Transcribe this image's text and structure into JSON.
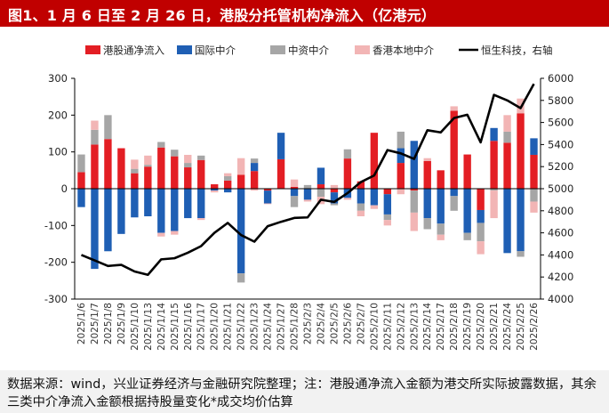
{
  "header": {
    "title": "图1、1 月 6 日至 2 月 26 日，港股分托管机构净流入（亿港元）"
  },
  "footnote": {
    "text": "数据来源：wind，兴业证券经济与金融研究院整理；注：港股通净流入金额为港交所实际披露数据，其余三类中介净流入金额根据持股量变化*成交均价估算"
  },
  "colors": {
    "southbound": "#e31e24",
    "intl_broker": "#1f5fb4",
    "chinese_broker": "#a6a6a6",
    "local_broker": "#f2b5b5",
    "hsi_line": "#000000",
    "title_bg": "#c00000"
  },
  "chart_data": {
    "type": "bar",
    "stacked": true,
    "categories": [
      "2025/1/6",
      "2025/1/7",
      "2025/1/8",
      "2025/1/9",
      "2025/1/10",
      "2025/1/13",
      "2025/1/14",
      "2025/1/15",
      "2025/1/16",
      "2025/1/17",
      "2025/1/20",
      "2025/1/21",
      "2025/1/22",
      "2025/1/23",
      "2025/1/24",
      "2025/1/27",
      "2025/1/28",
      "2025/2/3",
      "2025/2/4",
      "2025/2/5",
      "2025/2/6",
      "2025/2/7",
      "2025/2/10",
      "2025/2/11",
      "2025/2/12",
      "2025/2/13",
      "2025/2/14",
      "2025/2/17",
      "2025/2/18",
      "2025/2/19",
      "2025/2/20",
      "2025/2/21",
      "2025/2/24",
      "2025/2/25",
      "2025/2/26"
    ],
    "series": [
      {
        "name": "港股通净流入",
        "axis": "left",
        "values": [
          45,
          120,
          135,
          110,
          42,
          60,
          112,
          88,
          58,
          78,
          12,
          22,
          38,
          48,
          -5,
          80,
          5,
          0,
          12,
          -10,
          82,
          20,
          152,
          -15,
          70,
          -5,
          75,
          50,
          212,
          93,
          -58,
          130,
          125,
          205,
          92
        ]
      },
      {
        "name": "国际中介",
        "axis": "left",
        "values": [
          -50,
          -218,
          -170,
          -123,
          -78,
          -75,
          -120,
          -115,
          -80,
          -80,
          -5,
          -10,
          -230,
          22,
          -35,
          72,
          -20,
          -30,
          45,
          -30,
          -25,
          -40,
          -45,
          -55,
          40,
          130,
          -80,
          -95,
          -20,
          -120,
          -35,
          35,
          -175,
          -170,
          45
        ]
      },
      {
        "name": "中资中介",
        "axis": "left",
        "values": [
          48,
          40,
          65,
          0,
          12,
          5,
          15,
          18,
          12,
          12,
          0,
          12,
          -25,
          12,
          0,
          0,
          -30,
          10,
          -22,
          -5,
          25,
          -20,
          0,
          -15,
          45,
          -60,
          -30,
          -30,
          -40,
          -20,
          -50,
          -5,
          30,
          -15,
          -35
        ]
      },
      {
        "name": "香港本地中介",
        "axis": "left",
        "values": [
          0,
          25,
          0,
          0,
          25,
          25,
          -10,
          -10,
          22,
          -5,
          -5,
          8,
          45,
          -5,
          -2,
          0,
          20,
          -5,
          -20,
          10,
          -5,
          -15,
          -10,
          -15,
          -15,
          -50,
          8,
          -15,
          12,
          0,
          -35,
          -75,
          45,
          40,
          -30
        ]
      },
      {
        "name": "恒生科技，右轴",
        "axis": "right",
        "type": "line",
        "values": [
          4400,
          4350,
          4300,
          4310,
          4250,
          4220,
          4360,
          4370,
          4420,
          4480,
          4600,
          4690,
          4580,
          4520,
          4660,
          4700,
          4735,
          4740,
          4900,
          4880,
          4960,
          5060,
          5120,
          5350,
          5320,
          5270,
          5530,
          5510,
          5640,
          5670,
          5420,
          5850,
          5800,
          5730,
          5950
        ]
      }
    ],
    "ylim_left": [
      -300,
      300
    ],
    "yticks_left": [
      -300,
      -200,
      -100,
      0,
      100,
      200,
      300
    ],
    "ylim_right": [
      4000,
      6000
    ],
    "yticks_right": [
      4000,
      4200,
      4400,
      4600,
      4800,
      5000,
      5200,
      5400,
      5600,
      5800,
      6000
    ],
    "grid": false,
    "legend_position": "top"
  }
}
